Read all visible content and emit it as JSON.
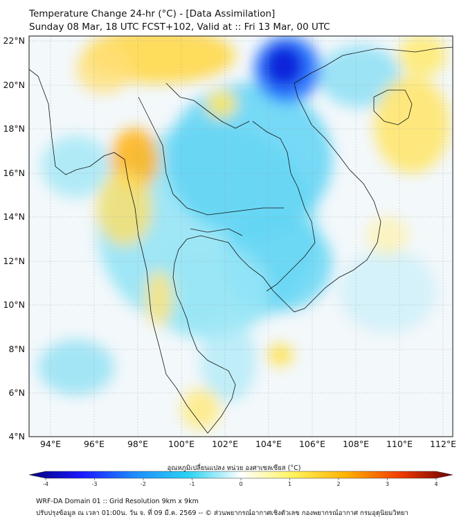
{
  "header": {
    "title": "Temperature Change 24-hr (°C) - [Data Assimilation]",
    "subtitle": "Sunday 08 Mar, 18 UTC FCST+102, Valid at :: Fri 13 Mar, 00 UTC"
  },
  "map": {
    "lat_labels": [
      "22°N",
      "20°N",
      "18°N",
      "16°N",
      "14°N",
      "12°N",
      "10°N",
      "8°N",
      "6°N",
      "4°N"
    ],
    "lon_labels": [
      "94°E",
      "96°E",
      "98°E",
      "100°E",
      "102°E",
      "104°E",
      "106°E",
      "108°E",
      "110°E",
      "112°E"
    ],
    "lat_range": [
      4,
      22.2
    ],
    "lon_range": [
      93,
      112.5
    ]
  },
  "colorbar": {
    "label": "อุณหภูมิเปลี่ยนแปลง หน่วย องศาเซลเซียส (°C)",
    "ticks": [
      "-4",
      "-3",
      "-2",
      "-1",
      "0",
      "1",
      "2",
      "3",
      "4"
    ],
    "range": [
      -4,
      4
    ],
    "colors": [
      "#05007a",
      "#1a1aff",
      "#1e8cff",
      "#2ad2f2",
      "#ffffff",
      "#fff35a",
      "#ffb000",
      "#f23c00",
      "#6e0000"
    ]
  },
  "field_anomalies": [
    {
      "name": "Gulf of Tonkin cold core",
      "lon": 104.8,
      "lat": 20.6,
      "value": -3.0
    },
    {
      "name": "Northern Laos cold area",
      "lon": 102.5,
      "lat": 17.5,
      "value": -1.6
    },
    {
      "name": "Cambodia cold area",
      "lon": 104.0,
      "lat": 12.3,
      "value": -1.4
    },
    {
      "name": "Gulf of Thailand cool area",
      "lon": 101.5,
      "lat": 10.0,
      "value": -0.9
    },
    {
      "name": "Western Thailand warm area",
      "lon": 98.0,
      "lat": 16.5,
      "value": 1.6
    },
    {
      "name": "Northern Myanmar warm area",
      "lon": 99.0,
      "lat": 21.5,
      "value": 1.3
    },
    {
      "name": "Hainan warm area",
      "lon": 110.0,
      "lat": 18.0,
      "value": 1.1
    },
    {
      "name": "South China Sea warm spot",
      "lon": 104.8,
      "lat": 7.8,
      "value": 0.9
    },
    {
      "name": "Andaman Sea cool area",
      "lon": 95.5,
      "lat": 8.0,
      "value": -0.8
    }
  ],
  "footer": {
    "line1": "WRF-DA Domain 01 :: Grid Resolution 9km x 9km",
    "line2": "ปรับปรุงข้อมูล ณ เวลา 01:00น. วัน จ. ที่ 09 มี.ค. 2569 -- © ส่วนพยากรณ์อากาศเชิงตัวเลข กองพยากรณ์อากาศ กรมอุตุนิยมวิทยา"
  }
}
